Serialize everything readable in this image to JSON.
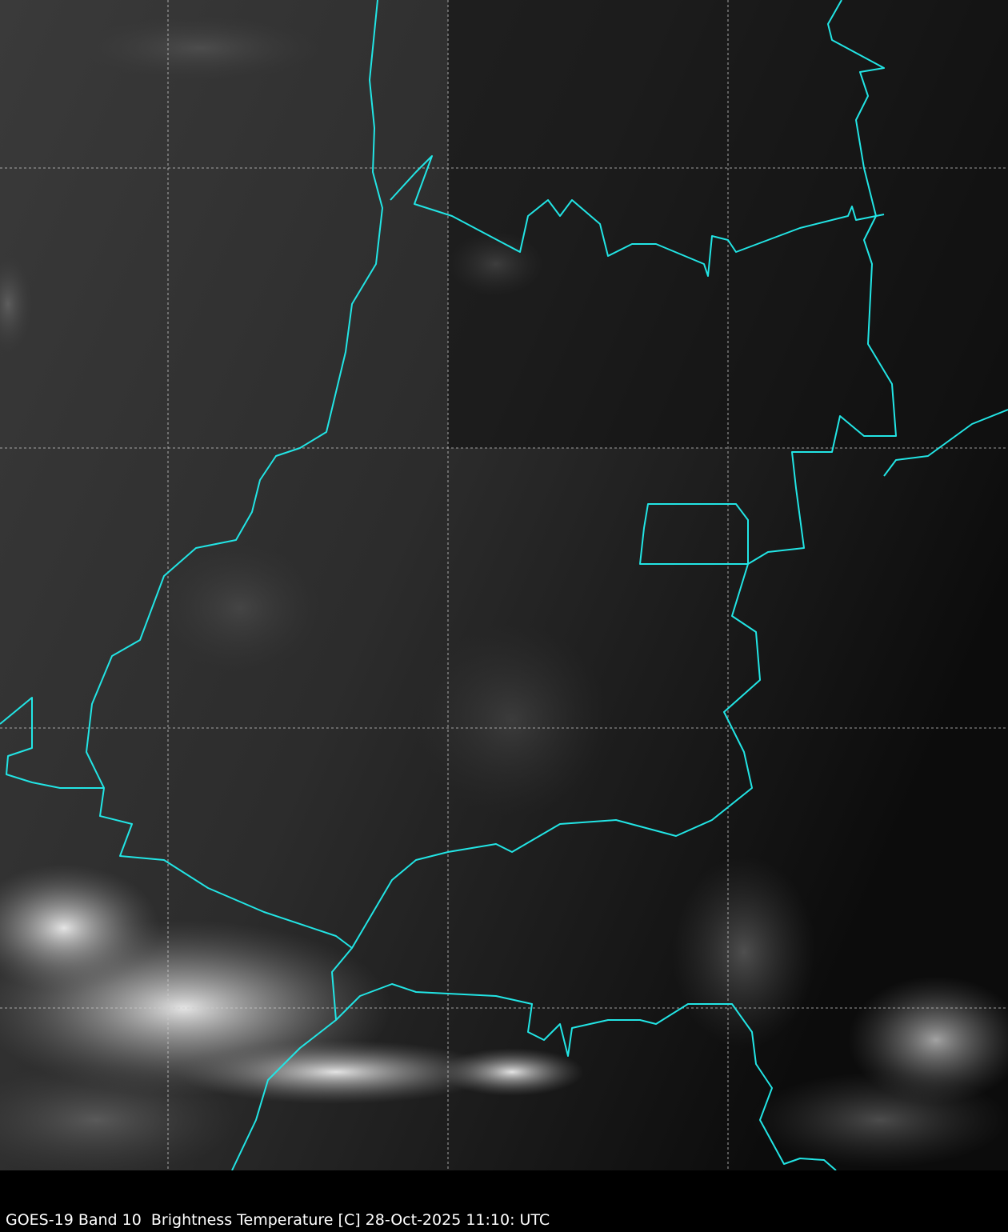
{
  "caption": "GOES-19 Band 10  Brightness Temperature [C] 28-Oct-2025 11:10: UTC",
  "colors": {
    "borders": "#22e5e5",
    "grid": "#cccccc",
    "background": "#000000"
  },
  "map": {
    "grid": true,
    "imagery": "grayscale infrared brightness temperature"
  }
}
